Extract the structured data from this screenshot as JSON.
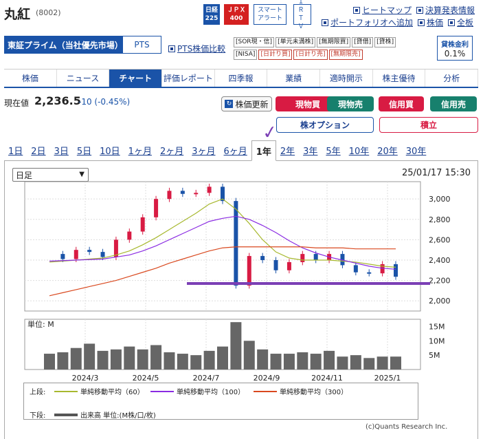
{
  "stock": {
    "name": "丸紅",
    "code": "(8002)"
  },
  "badges": {
    "nikkei_top": "日経",
    "nikkei_bottom": "225",
    "jpx_top": "ＪＰＸ",
    "jpx_bottom": "400",
    "smart_top": "スマート",
    "smart_bottom": "アラート",
    "ir_top": "ＩＲ",
    "ir_bottom": "ＴＶ"
  },
  "toplinks": {
    "heatmap": "ヒートマップ",
    "earnings": "決算発表情報",
    "portfolio": "ポートフォリオへ追加",
    "kabuka": "株価",
    "zenban": "全板"
  },
  "market": {
    "name": "東証プライム（当社優先市場）",
    "pts": "PTS",
    "pts_compare": "PTS株価比較"
  },
  "tags": [
    "SOR現・信",
    "単元未満株",
    "無期限買",
    "貸借",
    "貸株",
    "NISA",
    "日計り買",
    "日計り売",
    "無期限売"
  ],
  "margin_rate": {
    "label": "貸株金利",
    "value": "0.1%"
  },
  "nav_tabs": [
    "株価",
    "ニュース",
    "チャート",
    "評価レポート",
    "四季報",
    "業績",
    "適時開示",
    "株主優待",
    "分析"
  ],
  "quote": {
    "label": "現在値",
    "price": "2,236.5",
    "change": "-10 (-0.45%)"
  },
  "buttons": {
    "refresh": "株価更新",
    "cash_buy": "現物買",
    "cash_sell": "現物売",
    "margin_buy": "信用買",
    "margin_sell": "信用売",
    "option": "株オプション",
    "accumulate": "積立"
  },
  "periods": [
    "1日",
    "2日",
    "3日",
    "5日",
    "10日",
    "1ヶ月",
    "2ヶ月",
    "3ヶ月",
    "6ヶ月",
    "1年",
    "2年",
    "3年",
    "5年",
    "10年",
    "20年",
    "30年"
  ],
  "chart_select": "日足",
  "timestamp": "25/01/17 15:30",
  "chart_data": {
    "type": "line",
    "x": [
      "2024-01-22",
      "2024-02-05",
      "2024-02-19",
      "2024-03-04",
      "2024-03-18",
      "2024-04-01",
      "2024-04-15",
      "2024-04-29",
      "2024-05-13",
      "2024-05-27",
      "2024-06-10",
      "2024-06-24",
      "2024-07-08",
      "2024-07-22",
      "2024-08-05",
      "2024-08-19",
      "2024-09-02",
      "2024-09-16",
      "2024-09-30",
      "2024-10-14",
      "2024-10-28",
      "2024-11-11",
      "2024-11-25",
      "2024-12-09",
      "2024-12-23",
      "2025-01-06",
      "2025-01-17"
    ],
    "series": [
      {
        "name": "終値",
        "values": [
          2460,
          2410,
          2500,
          2480,
          2430,
          2600,
          2680,
          2820,
          3000,
          3080,
          3050,
          3060,
          3120,
          2980,
          2150,
          2440,
          2400,
          2300,
          2380,
          2460,
          2400,
          2460,
          2350,
          2280,
          2270,
          2360,
          2236.5
        ]
      },
      {
        "name": "単純移動平均（60）",
        "values": [
          2380,
          2390,
          2400,
          2410,
          2420,
          2450,
          2490,
          2550,
          2620,
          2700,
          2780,
          2860,
          2950,
          3000,
          2900,
          2760,
          2600,
          2480,
          2420,
          2400,
          2400,
          2400,
          2390,
          2380,
          2360,
          2340,
          2330
        ]
      },
      {
        "name": "単純移動平均（100）",
        "values": [
          2390,
          2395,
          2400,
          2405,
          2410,
          2430,
          2450,
          2490,
          2540,
          2600,
          2660,
          2720,
          2780,
          2810,
          2830,
          2800,
          2740,
          2670,
          2590,
          2520,
          2470,
          2430,
          2400,
          2370,
          2340,
          2320,
          2310
        ]
      },
      {
        "name": "単純移動平均（300）",
        "values": [
          2050,
          2080,
          2110,
          2140,
          2170,
          2200,
          2240,
          2280,
          2320,
          2370,
          2410,
          2450,
          2490,
          2520,
          2530,
          2530,
          2530,
          2530,
          2530,
          2530,
          2520,
          2520,
          2520,
          2510,
          2510,
          2510,
          2510
        ]
      }
    ],
    "volume": [
      5.5,
      6.0,
      7.5,
      9.0,
      6.5,
      7.0,
      8.0,
      7.0,
      8.5,
      6.0,
      5.5,
      5.0,
      6.5,
      8.0,
      16.5,
      10.0,
      7.0,
      5.5,
      5.5,
      6.0,
      5.5,
      6.5,
      4.5,
      5.0,
      4.0,
      4.5,
      4.5
    ],
    "ylabel_volume": "単位: M",
    "x_ticks": [
      "2024/3",
      "2024/5",
      "2024/7",
      "2024/9",
      "2024/11",
      "2025/1"
    ],
    "y_ticks": [
      "3,000",
      "2,800",
      "2,600",
      "2,400",
      "2,200",
      "2,000"
    ],
    "volume_ticks": [
      "15M",
      "10M",
      "5M"
    ],
    "ylim": [
      1900,
      3170
    ],
    "volume_ylim": [
      0,
      17.5
    ],
    "support_line": 2170
  },
  "legend": {
    "top_label": "上段:",
    "bottom_label": "下段:",
    "ma60": "単純移動平均（60）",
    "ma100": "単純移動平均（100）",
    "ma300": "単純移動平均（300）",
    "volume": "出来高 単位:(M株/口/枚)"
  },
  "colors": {
    "ma60": "#a7b82e",
    "ma100": "#8a2be2",
    "ma300": "#d9481e",
    "support": "#7b3fb5",
    "up": "#d81b43",
    "down": "#1a53a8"
  },
  "copyright": "(c)Quants Research Inc."
}
